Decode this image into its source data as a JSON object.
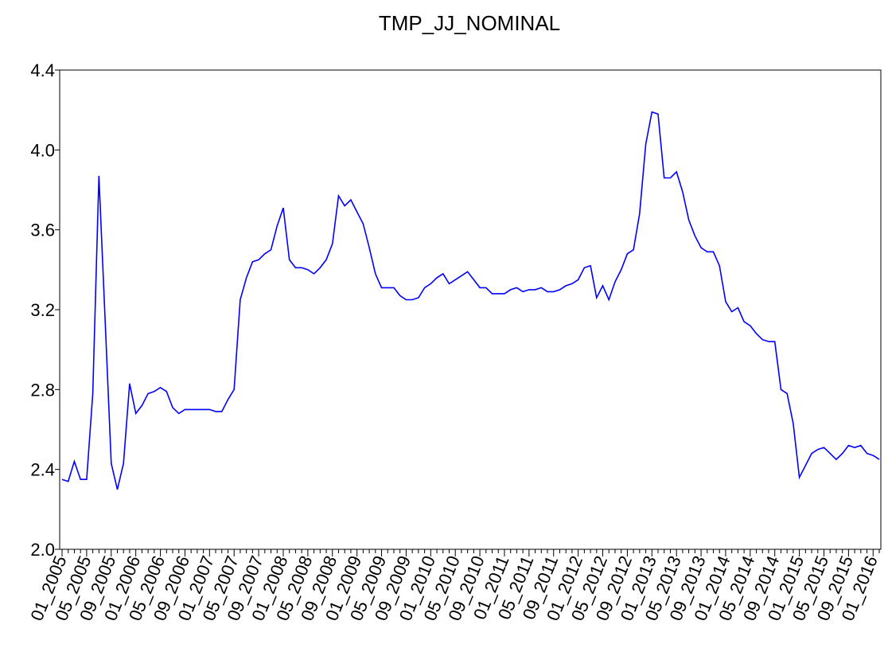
{
  "chart_data": {
    "type": "line",
    "title": "TMP_JJ_NOMINAL",
    "color": "#0000ff",
    "categories": [
      "01_2005",
      null,
      null,
      null,
      "05_2005",
      null,
      null,
      null,
      "09_2005",
      null,
      null,
      null,
      "01_2006",
      null,
      null,
      null,
      "05_2006",
      null,
      null,
      null,
      "09_2006",
      null,
      null,
      null,
      "01_2007",
      null,
      null,
      null,
      "05_2007",
      null,
      null,
      null,
      "09_2007",
      null,
      null,
      null,
      "01_2008",
      null,
      null,
      null,
      "05_2008",
      null,
      null,
      null,
      "09_2008",
      null,
      null,
      null,
      "01_2009",
      null,
      null,
      null,
      "05_2009",
      null,
      null,
      null,
      "09_2009",
      null,
      null,
      null,
      "01_2010",
      null,
      null,
      null,
      "05_2010",
      null,
      null,
      null,
      "09_2010",
      null,
      null,
      null,
      "01_2011",
      null,
      null,
      null,
      "05_2011",
      null,
      null,
      null,
      "09_2011",
      null,
      null,
      null,
      "01_2012",
      null,
      null,
      null,
      "05_2012",
      null,
      null,
      null,
      "09_2012",
      null,
      null,
      null,
      "01_2013",
      null,
      null,
      null,
      "05_2013",
      null,
      null,
      null,
      "09_2013",
      null,
      null,
      null,
      "01_2014",
      null,
      null,
      null,
      "05_2014",
      null,
      null,
      null,
      "09_2014",
      null,
      null,
      null,
      "01_2015",
      null,
      null,
      null,
      "05_2015",
      null,
      null,
      null,
      "09_2015",
      null,
      null,
      null,
      "01_2016",
      null
    ],
    "values": [
      2.35,
      2.34,
      2.44,
      2.35,
      2.35,
      2.78,
      3.87,
      3.15,
      2.43,
      2.3,
      2.43,
      2.83,
      2.68,
      2.72,
      2.78,
      2.79,
      2.81,
      2.79,
      2.71,
      2.68,
      2.7,
      2.7,
      2.7,
      2.7,
      2.7,
      2.69,
      2.69,
      2.75,
      2.8,
      3.25,
      3.36,
      3.44,
      3.45,
      3.48,
      3.5,
      3.62,
      3.71,
      3.45,
      3.41,
      3.41,
      3.4,
      3.38,
      3.41,
      3.45,
      3.53,
      3.77,
      3.72,
      3.75,
      3.69,
      3.63,
      3.51,
      3.38,
      3.31,
      3.31,
      3.31,
      3.27,
      3.25,
      3.25,
      3.26,
      3.31,
      3.33,
      3.36,
      3.38,
      3.33,
      3.35,
      3.37,
      3.39,
      3.35,
      3.31,
      3.31,
      3.28,
      3.28,
      3.28,
      3.3,
      3.31,
      3.29,
      3.3,
      3.3,
      3.31,
      3.29,
      3.29,
      3.3,
      3.32,
      3.33,
      3.35,
      3.41,
      3.42,
      3.26,
      3.32,
      3.25,
      3.34,
      3.4,
      3.48,
      3.5,
      3.68,
      4.03,
      4.19,
      4.18,
      3.86,
      3.86,
      3.89,
      3.79,
      3.65,
      3.57,
      3.51,
      3.49,
      3.49,
      3.42,
      3.24,
      3.19,
      3.21,
      3.14,
      3.12,
      3.08,
      3.05,
      3.04,
      3.04,
      2.8,
      2.78,
      2.63,
      2.36,
      2.42,
      2.48,
      2.5,
      2.51,
      2.48,
      2.45,
      2.48,
      2.52,
      2.51,
      2.52,
      2.48,
      2.47,
      2.45
    ],
    "ylim": [
      2.0,
      4.4
    ],
    "yticks": [
      {
        "value": 2.0,
        "label": "2.0"
      },
      2.4,
      2.8,
      3.2,
      3.6,
      {
        "value": 4.0,
        "label": "4.0"
      },
      4.4
    ]
  }
}
